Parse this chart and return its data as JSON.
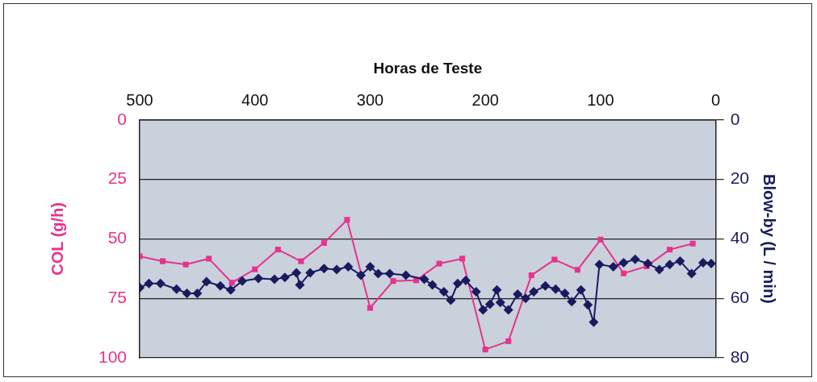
{
  "chart_data": {
    "type": "line",
    "xlabel": "Horas de Teste",
    "ylabel": "Blow-by (L / min)",
    "y2label": "COL (g/h)",
    "xlim": [
      500,
      0
    ],
    "xticks": [
      0,
      100,
      200,
      300,
      400,
      500
    ],
    "ylim": [
      80,
      0
    ],
    "yticks": [
      0,
      20,
      40,
      60,
      80
    ],
    "y2lim": [
      100,
      0
    ],
    "y2ticks": [
      0,
      25,
      50,
      75,
      100
    ],
    "grid": "y",
    "line_style": "solid",
    "series": [
      {
        "type": "line",
        "marker": "diamond",
        "color": "#1a1a5e",
        "x": [
          4,
          11,
          21,
          31,
          40,
          49,
          59,
          70,
          80,
          89,
          101,
          106,
          111,
          117,
          125,
          131,
          139,
          148,
          158,
          165,
          172,
          180,
          187,
          190,
          196,
          202,
          208,
          217,
          224,
          230,
          236,
          246,
          253,
          269,
          283,
          293,
          300,
          308,
          319,
          329,
          340,
          352,
          361,
          364,
          374,
          383,
          397,
          411,
          421,
          430,
          442,
          450,
          459,
          468,
          482,
          492,
          500
        ],
        "values": [
          48.3,
          48,
          51.7,
          47.5,
          48.6,
          50.3,
          48.3,
          46.9,
          48,
          49.4,
          48.6,
          68,
          62.2,
          57.2,
          61.1,
          58.3,
          56.9,
          55.8,
          57.8,
          60,
          58.6,
          63.9,
          61.4,
          57.2,
          62,
          63.9,
          57.8,
          54,
          55,
          60.6,
          57.8,
          55.5,
          53.6,
          52.2,
          51.7,
          51.7,
          49.4,
          52.2,
          49.4,
          50.3,
          50,
          51.4,
          55.5,
          51.4,
          53,
          53.6,
          53.3,
          54.2,
          57.2,
          55.8,
          54.4,
          58.3,
          58.3,
          56.9,
          55,
          55,
          56.4
        ]
      },
      {
        "type": "line",
        "marker": "square",
        "axis": "y2",
        "color": "#e6338c",
        "x": [
          20,
          40,
          60,
          80,
          100,
          120,
          140,
          160,
          180,
          200,
          220,
          240,
          260,
          280,
          300,
          320,
          340,
          360,
          380,
          400,
          420,
          440,
          460,
          480,
          500
        ],
        "values": [
          52,
          54.5,
          61.5,
          64.5,
          50.3,
          63,
          58.7,
          65.3,
          93,
          96.5,
          58.3,
          60.4,
          67.4,
          67.7,
          79,
          42,
          51.7,
          59.4,
          54.5,
          62.8,
          68.4,
          58.3,
          60.8,
          59.4,
          57.3
        ]
      }
    ]
  }
}
